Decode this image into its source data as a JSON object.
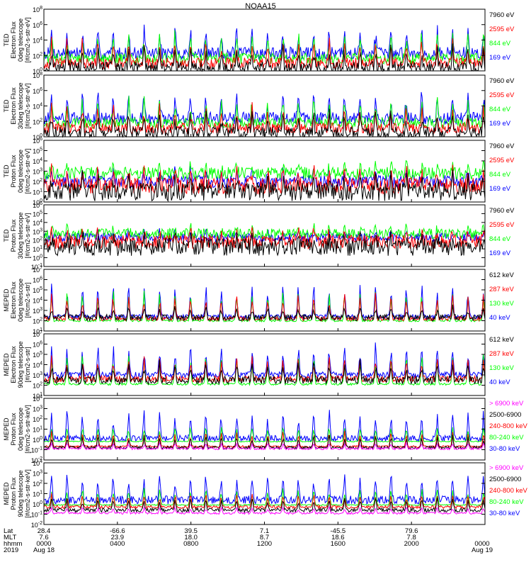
{
  "title": "NOAA15",
  "colors": {
    "blue": "#0000ff",
    "red": "#ff0000",
    "green": "#00ff00",
    "black": "#000000",
    "magenta": "#ff00ff",
    "frame": "#000000"
  },
  "chart_data": [
    {
      "type": "line",
      "id": "ted-e-0",
      "ylabel": [
        "TED",
        "Electron Flux",
        "0deg telescope",
        "[#/cm2-s-str-eV]"
      ],
      "yticks": [
        "10^0",
        "10^2",
        "10^4",
        "10^6",
        "10^8"
      ],
      "ylim": [
        0,
        8
      ],
      "series": [
        {
          "name": "7960 eV",
          "color": "black",
          "baseline": 0.4,
          "spread": 0.8,
          "peak": 3.0
        },
        {
          "name": "2595 eV",
          "color": "red",
          "baseline": 1.0,
          "spread": 0.7,
          "peak": 4.0
        },
        {
          "name": "844 eV",
          "color": "green",
          "baseline": 1.6,
          "spread": 0.7,
          "peak": 5.0
        },
        {
          "name": "169 eV",
          "color": "blue",
          "baseline": 2.3,
          "spread": 0.8,
          "peak": 5.6
        }
      ]
    },
    {
      "type": "line",
      "id": "ted-e-30",
      "ylabel": [
        "TED",
        "Electron Flux",
        "30deg telescope",
        "[#/cm2-s-str-eV]"
      ],
      "yticks": [
        "10^0",
        "10^2",
        "10^4",
        "10^6",
        "10^8"
      ],
      "ylim": [
        0,
        8
      ],
      "series": [
        {
          "name": "7960 eV",
          "color": "black",
          "baseline": 0.5,
          "spread": 0.8,
          "peak": 3.0
        },
        {
          "name": "2595 eV",
          "color": "red",
          "baseline": 1.1,
          "spread": 0.7,
          "peak": 4.0
        },
        {
          "name": "844 eV",
          "color": "green",
          "baseline": 1.8,
          "spread": 0.7,
          "peak": 5.0
        },
        {
          "name": "169 eV",
          "color": "blue",
          "baseline": 2.4,
          "spread": 0.8,
          "peak": 5.8
        }
      ]
    },
    {
      "type": "line",
      "id": "ted-p-0",
      "ylabel": [
        "TED",
        "Proton Flux",
        "0deg telescope",
        "[#/cm2-s-str-eV]"
      ],
      "yticks": [
        "10^0",
        "10^1",
        "10^2",
        "10^3",
        "10^4",
        "10^5",
        "10^6"
      ],
      "ylim": [
        0,
        6
      ],
      "series": [
        {
          "name": "7960 eV",
          "color": "black",
          "baseline": 1.0,
          "spread": 0.9,
          "peak": 2.5
        },
        {
          "name": "2595 eV",
          "color": "red",
          "baseline": 1.6,
          "spread": 0.8,
          "peak": 3.2
        },
        {
          "name": "844 eV",
          "color": "green",
          "baseline": 2.8,
          "spread": 0.6,
          "peak": 3.6
        },
        {
          "name": "169 eV",
          "color": "blue",
          "baseline": 2.0,
          "spread": 0.6,
          "peak": 3.2
        }
      ]
    },
    {
      "type": "line",
      "id": "ted-p-30",
      "ylabel": [
        "TED",
        "Proton Flux",
        "30deg telescope",
        "[#/cm2-s-str-eV]"
      ],
      "yticks": [
        "10^-1",
        "10^0",
        "10^1",
        "10^2",
        "10^3",
        "10^4",
        "10^5",
        "10^6"
      ],
      "ylim": [
        -1,
        6
      ],
      "series": [
        {
          "name": "7960 eV",
          "color": "black",
          "baseline": 1.2,
          "spread": 1.0,
          "peak": 2.5
        },
        {
          "name": "2595 eV",
          "color": "red",
          "baseline": 1.8,
          "spread": 0.8,
          "peak": 3.0
        },
        {
          "name": "844 eV",
          "color": "green",
          "baseline": 2.7,
          "spread": 0.6,
          "peak": 3.5
        },
        {
          "name": "169 eV",
          "color": "blue",
          "baseline": 2.3,
          "spread": 0.5,
          "peak": 3.0
        }
      ]
    },
    {
      "type": "line",
      "id": "meped-e-0",
      "ylabel": [
        "MEPED",
        "Electron Flux",
        "0deg telescope",
        "[#/cm2-s-str]"
      ],
      "yticks": [
        "10^1",
        "10^2",
        "10^3",
        "10^4",
        "10^5",
        "10^6",
        "10^7"
      ],
      "ylim": [
        1,
        7
      ],
      "series": [
        {
          "name": "612 keV",
          "color": "black",
          "baseline": 2.3,
          "spread": 0.3,
          "peak": 3.4
        },
        {
          "name": "287 keV",
          "color": "red",
          "baseline": 2.2,
          "spread": 0.2,
          "peak": 4.6
        },
        {
          "name": "130 keV",
          "color": "green",
          "baseline": 2.0,
          "spread": 0.1,
          "peak": 5.0
        },
        {
          "name": "40 keV",
          "color": "blue",
          "baseline": 2.4,
          "spread": 0.2,
          "peak": 5.8
        }
      ]
    },
    {
      "type": "line",
      "id": "meped-e-90",
      "ylabel": [
        "MEPED",
        "Electron Flux",
        "90deg telescope",
        "[#/cm2-s-str]"
      ],
      "yticks": [
        "10^1",
        "10^2",
        "10^3",
        "10^4",
        "10^5",
        "10^6",
        "10^7"
      ],
      "ylim": [
        1,
        7
      ],
      "series": [
        {
          "name": "612 keV",
          "color": "black",
          "baseline": 2.5,
          "spread": 0.4,
          "peak": 4.2
        },
        {
          "name": "287 keV",
          "color": "red",
          "baseline": 2.6,
          "spread": 0.3,
          "peak": 4.8
        },
        {
          "name": "130 keV",
          "color": "green",
          "baseline": 2.1,
          "spread": 0.1,
          "peak": 5.2
        },
        {
          "name": "40 keV",
          "color": "blue",
          "baseline": 3.0,
          "spread": 0.3,
          "peak": 6.0
        }
      ]
    },
    {
      "type": "line",
      "id": "meped-p-0",
      "ylabel": [
        "MEPED",
        "Proton Flux",
        "0deg telescope",
        "[#/cm2-s-str-keV]"
      ],
      "yticks": [
        "10^-2",
        "10^-1",
        "10^0",
        "10^1",
        "10^2",
        "10^3",
        "10^4"
      ],
      "ylim": [
        -2,
        4
      ],
      "series": [
        {
          "name": "> 6900 keV",
          "color": "magenta",
          "baseline": -0.9,
          "spread": 0.1,
          "peak": -0.3
        },
        {
          "name": "2500-6900",
          "color": "black",
          "baseline": -0.8,
          "spread": 0.15,
          "peak": 0.4
        },
        {
          "name": "240-800 keV",
          "color": "red",
          "baseline": -0.7,
          "spread": 0.1,
          "peak": 0.8
        },
        {
          "name": "80-240 keV",
          "color": "green",
          "baseline": -0.2,
          "spread": 0.05,
          "peak": 1.4
        },
        {
          "name": "30-80 keV",
          "color": "blue",
          "baseline": 0.1,
          "spread": 0.3,
          "peak": 2.8
        }
      ]
    },
    {
      "type": "line",
      "id": "meped-p-90",
      "ylabel": [
        "MEPED",
        "Proton Flux",
        "90deg telescope",
        "[#/cm2-s-str-keV]"
      ],
      "yticks": [
        "10^-2",
        "10^-1",
        "10^0",
        "10^1",
        "10^2",
        "10^3",
        "10^4"
      ],
      "ylim": [
        -2,
        4
      ],
      "series": [
        {
          "name": "> 6900 keV",
          "color": "magenta",
          "baseline": -0.9,
          "spread": 0.1,
          "peak": -0.3
        },
        {
          "name": "2500-6900",
          "color": "black",
          "baseline": -0.6,
          "spread": 0.2,
          "peak": 0.6
        },
        {
          "name": "240-800 keV",
          "color": "red",
          "baseline": -0.3,
          "spread": 0.15,
          "peak": 1.0
        },
        {
          "name": "80-240 keV",
          "color": "green",
          "baseline": -0.1,
          "spread": 0.05,
          "peak": 1.6
        },
        {
          "name": "30-80 keV",
          "color": "blue",
          "baseline": 0.4,
          "spread": 0.4,
          "peak": 3.0
        }
      ]
    }
  ],
  "x_axis": {
    "row_labels": [
      "Lat",
      "MLT",
      "hhmm",
      "2019"
    ],
    "ticks": [
      {
        "lat": "28.4",
        "mlt": "7.6",
        "hhmm": "0000",
        "date": "Aug 18"
      },
      {
        "lat": "-66.6",
        "mlt": "23.9",
        "hhmm": "0400",
        "date": ""
      },
      {
        "lat": "39.5",
        "mlt": "18.0",
        "hhmm": "0800",
        "date": ""
      },
      {
        "lat": "7.1",
        "mlt": "8.7",
        "hhmm": "1200",
        "date": ""
      },
      {
        "lat": "-45.5",
        "mlt": "18.6",
        "hhmm": "1600",
        "date": ""
      },
      {
        "lat": "79.6",
        "mlt": "7.8",
        "hhmm": "2000",
        "date": ""
      },
      {
        "lat": "",
        "mlt": "",
        "hhmm": "0000",
        "date": "Aug 19"
      }
    ]
  }
}
